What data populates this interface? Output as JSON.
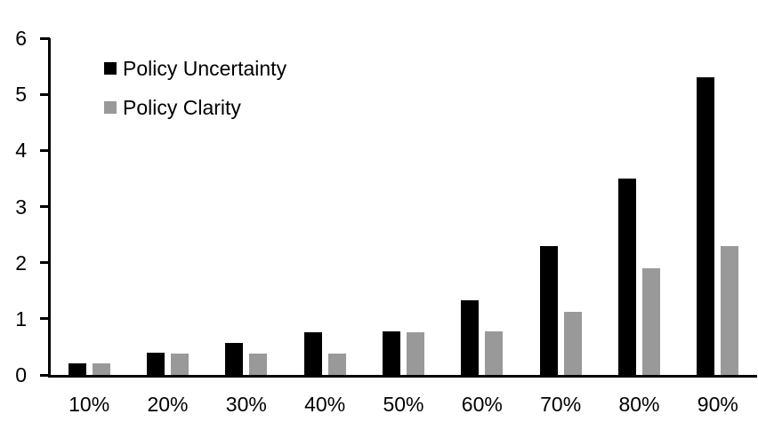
{
  "chart_data": {
    "type": "bar",
    "title": "",
    "xlabel": "",
    "ylabel": "",
    "categories": [
      "10%",
      "20%",
      "30%",
      "40%",
      "50%",
      "60%",
      "70%",
      "80%",
      "90%"
    ],
    "series": [
      {
        "name": "Policy Uncertainty",
        "color": "#000000",
        "values": [
          0.2,
          0.4,
          0.57,
          0.76,
          0.78,
          1.33,
          2.3,
          3.5,
          5.3
        ]
      },
      {
        "name": "Policy Clarity",
        "color": "#999999",
        "values": [
          0.2,
          0.38,
          0.38,
          0.38,
          0.76,
          0.77,
          1.13,
          1.9,
          2.3
        ]
      }
    ],
    "ylim": [
      0,
      6
    ],
    "yticks": [
      0,
      1,
      2,
      3,
      4,
      5,
      6
    ],
    "grid": false,
    "legend_position": "top-left-inside",
    "axis_color": "#000000",
    "background_color": "#ffffff"
  }
}
